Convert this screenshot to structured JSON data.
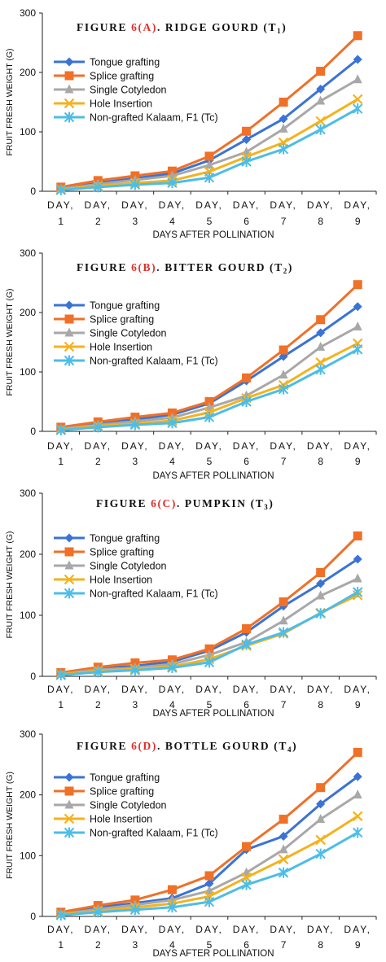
{
  "series_styles": [
    {
      "color": "#3a73d6",
      "marker": "diamond"
    },
    {
      "color": "#f07028",
      "marker": "square"
    },
    {
      "color": "#a8a8a8",
      "marker": "triangle"
    },
    {
      "color": "#f5b21c",
      "marker": "x"
    },
    {
      "color": "#4cbde8",
      "marker": "asterisk"
    }
  ],
  "title_colors": {
    "text": "#111111",
    "accent": "#e0302a"
  },
  "chart_data": [
    {
      "type": "line",
      "title": {
        "prefix": "FIGURE ",
        "accent": "6(A)",
        "rest": ". RIDGE GOURD (T",
        "sub": "1",
        "end": ")"
      },
      "xlabel": "DAYS AFTER POLLINATION",
      "ylabel": "FRUIT FRESH WEIGHT (G)",
      "ylim": [
        0,
        300
      ],
      "yticks": [
        0,
        100,
        200,
        300
      ],
      "categories": [
        [
          "DAY,",
          "1"
        ],
        [
          "DAY,",
          "2"
        ],
        [
          "DAY,",
          "3"
        ],
        [
          "DAY,",
          "4"
        ],
        [
          "DAY,",
          "5"
        ],
        [
          "DAY,",
          "6"
        ],
        [
          "DAY,",
          "7"
        ],
        [
          "DAY,",
          "8"
        ],
        [
          "DAY,",
          "9"
        ]
      ],
      "legend": "top-left",
      "series": [
        {
          "name": "Tongue grafting",
          "values": [
            5,
            14,
            22,
            30,
            52,
            87,
            122,
            172,
            222
          ]
        },
        {
          "name": "Splice grafting",
          "values": [
            7,
            18,
            26,
            34,
            59,
            101,
            150,
            202,
            262
          ]
        },
        {
          "name": "Single Cotyledon",
          "values": [
            4,
            12,
            19,
            26,
            44,
            66,
            105,
            152,
            188
          ]
        },
        {
          "name": "Hole Insertion",
          "values": [
            3,
            9,
            14,
            18,
            33,
            58,
            82,
            118,
            155
          ]
        },
        {
          "name": "Non-grafted Kalaam, F1 (Tc)",
          "values": [
            2,
            7,
            11,
            14,
            23,
            50,
            71,
            104,
            139
          ]
        }
      ]
    },
    {
      "type": "line",
      "title": {
        "prefix": "FIGURE ",
        "accent": "6(B)",
        "rest": ". BITTER GOURD (T",
        "sub": "2",
        "end": ")"
      },
      "xlabel": "DAYS AFTER POLLINATION",
      "ylabel": "FRUIT FRESH WEIGHT (G)",
      "ylim": [
        0,
        300
      ],
      "yticks": [
        0,
        100,
        200,
        300
      ],
      "categories": [
        [
          "DAY,",
          "1"
        ],
        [
          "DAY,",
          "2"
        ],
        [
          "DAY,",
          "3"
        ],
        [
          "DAY,",
          "4"
        ],
        [
          "DAY,",
          "5"
        ],
        [
          "DAY,",
          "6"
        ],
        [
          "DAY,",
          "7"
        ],
        [
          "DAY,",
          "8"
        ],
        [
          "DAY,",
          "9"
        ]
      ],
      "legend": "top-left",
      "series": [
        {
          "name": "Tongue grafting",
          "values": [
            5,
            13,
            20,
            28,
            47,
            85,
            126,
            166,
            210
          ]
        },
        {
          "name": "Splice grafting",
          "values": [
            7,
            16,
            24,
            31,
            50,
            90,
            137,
            188,
            247
          ]
        },
        {
          "name": "Single Cotyledon",
          "values": [
            4,
            11,
            17,
            23,
            40,
            60,
            95,
            142,
            176
          ]
        },
        {
          "name": "Hole Insertion",
          "values": [
            3,
            9,
            13,
            18,
            32,
            56,
            78,
            116,
            148
          ]
        },
        {
          "name": "Non-grafted Kalaam, F1 (Tc)",
          "values": [
            2,
            7,
            11,
            14,
            24,
            50,
            71,
            104,
            138
          ]
        }
      ]
    },
    {
      "type": "line",
      "title": {
        "prefix": "FIGURE ",
        "accent": "6(C)",
        "rest": ". PUMPKIN (T",
        "sub": "3",
        "end": ")"
      },
      "xlabel": "DAYS AFTER POLLINATION",
      "ylabel": "FRUIT FRESH WEIGHT (G)",
      "ylim": [
        0,
        300
      ],
      "yticks": [
        0,
        100,
        200,
        300
      ],
      "categories": [
        [
          "DAY,",
          "1"
        ],
        [
          "DAY,",
          "2"
        ],
        [
          "DAY,",
          "3"
        ],
        [
          "DAY,",
          "4"
        ],
        [
          "DAY,",
          "5"
        ],
        [
          "DAY,",
          "6"
        ],
        [
          "DAY,",
          "7"
        ],
        [
          "DAY,",
          "8"
        ],
        [
          "DAY,",
          "9"
        ]
      ],
      "legend": "top-left",
      "series": [
        {
          "name": "Tongue grafting",
          "values": [
            5,
            13,
            17,
            24,
            42,
            72,
            115,
            152,
            192
          ]
        },
        {
          "name": "Splice grafting",
          "values": [
            6,
            15,
            22,
            27,
            45,
            78,
            122,
            170,
            230
          ]
        },
        {
          "name": "Single Cotyledon",
          "values": [
            4,
            11,
            14,
            20,
            35,
            56,
            91,
            132,
            160
          ]
        },
        {
          "name": "Hole Insertion",
          "values": [
            3,
            9,
            12,
            16,
            28,
            50,
            70,
            104,
            133
          ]
        },
        {
          "name": "Non-grafted Kalaam, F1 (Tc)",
          "values": [
            2,
            7,
            10,
            14,
            23,
            52,
            72,
            103,
            138
          ]
        }
      ]
    },
    {
      "type": "line",
      "title": {
        "prefix": "FIGURE ",
        "accent": "6(D)",
        "rest": ". BOTTLE GOURD (T",
        "sub": "4",
        "end": ")"
      },
      "xlabel": "DAYS AFTER POLLINATION",
      "ylabel": "FRUIT FRESH WEIGHT (G)",
      "ylim": [
        0,
        300
      ],
      "yticks": [
        0,
        100,
        200,
        300
      ],
      "categories": [
        [
          "DAY,",
          "1"
        ],
        [
          "DAY,",
          "2"
        ],
        [
          "DAY,",
          "3"
        ],
        [
          "DAY,",
          "4"
        ],
        [
          "DAY,",
          "5"
        ],
        [
          "DAY,",
          "6"
        ],
        [
          "DAY,",
          "7"
        ],
        [
          "DAY,",
          "8"
        ],
        [
          "DAY,",
          "9"
        ]
      ],
      "legend": "top-left",
      "series": [
        {
          "name": "Tongue grafting",
          "values": [
            5,
            15,
            22,
            30,
            54,
            110,
            132,
            185,
            230
          ]
        },
        {
          "name": "Splice grafting",
          "values": [
            7,
            18,
            27,
            44,
            67,
            115,
            160,
            212,
            270
          ]
        },
        {
          "name": "Single Cotyledon",
          "values": [
            4,
            12,
            19,
            27,
            42,
            72,
            110,
            160,
            200
          ]
        },
        {
          "name": "Hole Insertion",
          "values": [
            3,
            9,
            15,
            21,
            33,
            64,
            94,
            126,
            165
          ]
        },
        {
          "name": "Non-grafted Kalaam, F1 (Tc)",
          "values": [
            2,
            7,
            11,
            15,
            24,
            52,
            72,
            103,
            138
          ]
        }
      ]
    }
  ]
}
